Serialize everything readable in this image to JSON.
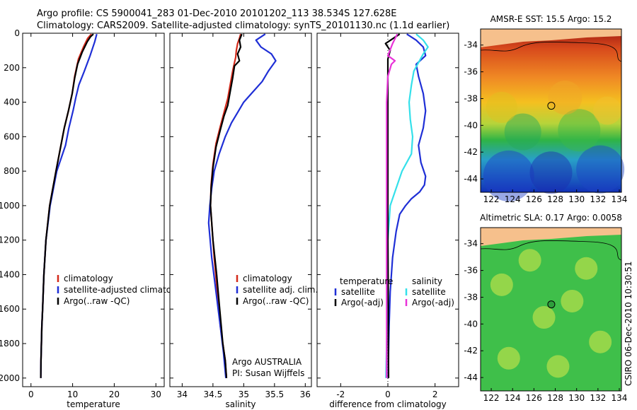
{
  "header": {
    "line1": "Argo profile: CS 5900041_283 01-Dec-2010 20101202_113 38.534S 127.628E",
    "line2": "Climatology: CARS2009. Satellite-adjusted climatology: synTS_20101130.nc (1.1d earlier)"
  },
  "side_label": "CSIRO 06-Dec-2010 10:30:51",
  "colors": {
    "clim": "#d42a1a",
    "sat": "#1f2fd6",
    "argo": "#000000",
    "sal_sat": "#34e0ea",
    "sal_argo": "#e832d8"
  },
  "chart_data": [
    {
      "type": "line",
      "title": "",
      "xlabel": "temperature",
      "ylabel": "",
      "xlim": [
        -2,
        32
      ],
      "ylim": [
        2050,
        0
      ],
      "xticks": [
        "0",
        "10",
        "20",
        "30"
      ],
      "xtick_values": [
        0,
        10,
        20,
        30
      ],
      "yticks": [
        "0",
        "200",
        "400",
        "600",
        "800",
        "1000",
        "1200",
        "1400",
        "1600",
        "1800",
        "2000"
      ],
      "ytick_values": [
        0,
        200,
        400,
        600,
        800,
        1000,
        1200,
        1400,
        1600,
        1800,
        2000
      ],
      "legend": [
        "climatology",
        "satellite-adjusted climatolog",
        "Argo(..raw -QC)"
      ],
      "series": [
        {
          "name": "climatology",
          "color": "clim",
          "x": [
            14.5,
            13.6,
            12.6,
            11.4,
            10.5,
            9.9,
            9.0,
            8.0,
            6.0,
            4.5,
            3.6,
            3.1,
            2.8,
            2.6,
            2.5,
            2.4,
            2.35
          ],
          "y": [
            5,
            30,
            80,
            150,
            250,
            350,
            450,
            550,
            800,
            1000,
            1200,
            1400,
            1600,
            1700,
            1800,
            1900,
            2000
          ]
        },
        {
          "name": "satellite-adjusted climatology",
          "color": "sat",
          "x": [
            15.8,
            15.3,
            14.2,
            12.8,
            11.5,
            10.8,
            10.1,
            9.1,
            8.3,
            6.2,
            4.6,
            3.6,
            3.1,
            2.8,
            2.6,
            2.5,
            2.4,
            2.35
          ],
          "y": [
            5,
            50,
            130,
            220,
            300,
            370,
            450,
            550,
            650,
            800,
            1000,
            1200,
            1400,
            1600,
            1700,
            1800,
            1900,
            2000
          ]
        },
        {
          "name": "Argo",
          "color": "argo",
          "x": [
            15.0,
            14.3,
            13.5,
            12.3,
            11.2,
            10.5,
            9.9,
            9.0,
            8.0,
            6.0,
            4.5,
            3.6,
            3.1,
            2.8,
            2.6,
            2.5,
            2.4,
            2.35
          ],
          "y": [
            5,
            20,
            50,
            110,
            180,
            260,
            350,
            450,
            550,
            800,
            1000,
            1200,
            1400,
            1600,
            1700,
            1800,
            1900,
            2000
          ]
        }
      ]
    },
    {
      "type": "line",
      "xlabel": "salinity",
      "xlim": [
        33.8,
        36.1
      ],
      "ylim": [
        2050,
        0
      ],
      "xticks": [
        "34",
        "34.5",
        "35",
        "35.5",
        "36"
      ],
      "xtick_values": [
        34,
        34.5,
        35,
        35.5,
        36
      ],
      "legend": [
        "climatology",
        "satellite adj. clim.",
        "Argo(..raw -QC)"
      ],
      "annotation": [
        "Argo AUSTRALIA",
        "PI: Susan Wijffels"
      ],
      "series": [
        {
          "name": "climatology",
          "color": "clim",
          "x": [
            34.95,
            34.93,
            34.9,
            34.88,
            34.87,
            34.85,
            34.82,
            34.78,
            34.74,
            34.68,
            34.62,
            34.55,
            34.5,
            34.47,
            34.46,
            34.48,
            34.52,
            34.57,
            34.62,
            34.66,
            34.7,
            34.72
          ],
          "y": [
            5,
            30,
            60,
            100,
            140,
            170,
            220,
            300,
            380,
            460,
            540,
            640,
            760,
            880,
            1000,
            1100,
            1300,
            1500,
            1700,
            1800,
            1900,
            2000
          ]
        },
        {
          "name": "satellite adj. clim.",
          "color": "sat",
          "x": [
            35.35,
            35.2,
            35.28,
            35.45,
            35.52,
            35.4,
            35.3,
            35.15,
            35.0,
            34.9,
            34.8,
            34.7,
            34.6,
            34.52,
            34.48,
            34.45,
            34.43,
            34.48,
            34.55,
            34.62,
            34.67,
            34.71
          ],
          "y": [
            5,
            40,
            80,
            120,
            160,
            220,
            280,
            340,
            400,
            460,
            520,
            600,
            700,
            800,
            900,
            1000,
            1100,
            1300,
            1500,
            1700,
            1850,
            2000
          ]
        },
        {
          "name": "Argo",
          "color": "argo",
          "x": [
            34.97,
            34.93,
            34.95,
            34.9,
            34.93,
            34.85,
            34.82,
            34.78,
            34.74,
            34.68,
            34.62,
            34.55,
            34.5,
            34.47,
            34.46,
            34.5,
            34.56,
            34.61,
            34.66,
            34.7,
            34.72
          ],
          "y": [
            5,
            40,
            80,
            120,
            160,
            190,
            260,
            340,
            420,
            480,
            560,
            660,
            780,
            900,
            1000,
            1200,
            1400,
            1600,
            1800,
            1900,
            2000
          ]
        }
      ]
    },
    {
      "type": "line",
      "xlabel": "difference from climatology",
      "xlim": [
        -3,
        3
      ],
      "ylim": [
        2050,
        0
      ],
      "xticks": [
        "-2",
        "0",
        "2"
      ],
      "xtick_values": [
        -2,
        0,
        2
      ],
      "legend": [
        "temperature",
        "satellite",
        "Argo(-adj)",
        "salinity",
        "satellite",
        "Argo(-adj)"
      ],
      "series": [
        {
          "name": "temperature satellite",
          "color": "sat",
          "x": [
            0.8,
            1.2,
            1.5,
            1.6,
            1.2,
            1.3,
            1.5,
            1.6,
            1.5,
            1.3,
            1.4,
            1.6,
            1.55,
            1.35,
            1.0,
            0.75,
            0.5,
            0.35,
            0.2,
            0.1,
            0.05,
            0.03,
            0.02
          ],
          "y": [
            5,
            40,
            80,
            130,
            180,
            250,
            350,
            450,
            550,
            650,
            750,
            830,
            880,
            920,
            960,
            1000,
            1050,
            1150,
            1300,
            1500,
            1700,
            1850,
            2000
          ]
        },
        {
          "name": "temperature Argo",
          "color": "argo",
          "x": [
            0.5,
            -0.1,
            0.1,
            0.0,
            0.0,
            0.0,
            0.0,
            0.02,
            0.02,
            0.03
          ],
          "y": [
            5,
            60,
            100,
            150,
            400,
            800,
            1200,
            1600,
            1800,
            2000
          ]
        },
        {
          "name": "salinity satellite",
          "color": "sal_sat",
          "x": [
            1.2,
            1.5,
            1.7,
            1.5,
            1.3,
            1.1,
            1.0,
            0.9,
            0.95,
            1.05,
            1.0,
            0.6,
            0.1,
            0.0,
            0.0,
            -0.05,
            -0.08
          ],
          "y": [
            5,
            40,
            80,
            120,
            170,
            220,
            300,
            400,
            500,
            600,
            700,
            800,
            1000,
            1200,
            1500,
            1800,
            2000
          ]
        },
        {
          "name": "salinity Argo",
          "color": "sal_argo",
          "x": [
            0.4,
            0.2,
            0.0,
            0.3,
            0.15,
            0.0,
            -0.05,
            -0.05,
            -0.05,
            -0.05
          ],
          "y": [
            5,
            60,
            130,
            160,
            180,
            250,
            400,
            800,
            1500,
            2000
          ]
        }
      ]
    },
    {
      "type": "heatmap",
      "title": "AMSR-E SST: 15.5 Argo: 15.2",
      "xlim": [
        121,
        134.2
      ],
      "ylim": [
        -45,
        -32.8
      ],
      "xticks": [
        "122",
        "124",
        "126",
        "128",
        "130",
        "132",
        "134"
      ],
      "xtick_values": [
        122,
        124,
        126,
        128,
        130,
        132,
        134
      ],
      "yticks": [
        "-34",
        "-36",
        "-38",
        "-40",
        "-42",
        "-44"
      ],
      "ytick_values": [
        -34,
        -36,
        -38,
        -40,
        -42,
        -44
      ],
      "marker": {
        "lon": 127.628,
        "lat": -38.534
      }
    },
    {
      "type": "heatmap",
      "title": "Altimetric SLA: 0.17 Argo: 0.0058",
      "xlim": [
        121,
        134.2
      ],
      "ylim": [
        -45,
        -32.8
      ],
      "xticks": [
        "122",
        "124",
        "126",
        "128",
        "130",
        "132",
        "134"
      ],
      "xtick_values": [
        122,
        124,
        126,
        128,
        130,
        132,
        134
      ],
      "yticks": [
        "-34",
        "-36",
        "-38",
        "-40",
        "-42",
        "-44"
      ],
      "ytick_values": [
        -34,
        -36,
        -38,
        -40,
        -42,
        -44
      ],
      "marker": {
        "lon": 127.628,
        "lat": -38.534
      }
    }
  ]
}
